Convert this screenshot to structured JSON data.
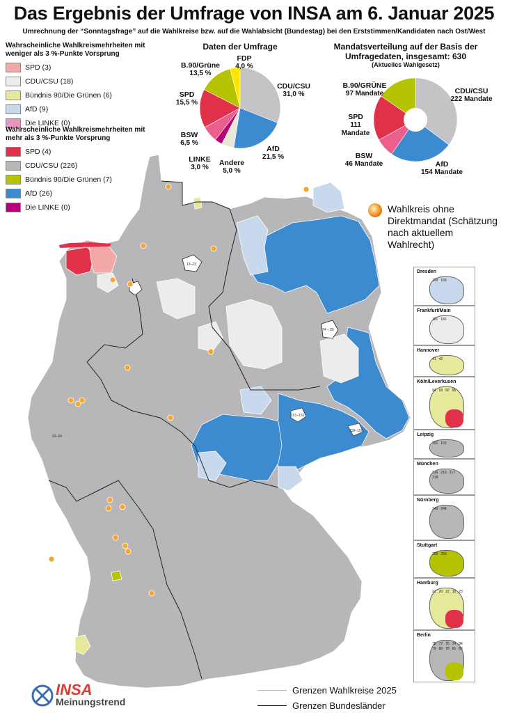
{
  "title": "Das Ergebnis der Umfrage von INSA am 6. Januar 2025",
  "subtitle": "Umrechnung der “Sonntagsfrage” auf die Wahlkreise bzw. auf die Wahlabsicht (Bundestag) bei den Erststimmen/Kandidaten nach Ost/West",
  "colors": {
    "spd_strong": "#e0304a",
    "spd_weak": "#f2a8a6",
    "cdu_strong": "#b7b7b9",
    "cdu_weak": "#ececec",
    "gruene_strong": "#b5c300",
    "gruene_weak": "#e6e89a",
    "afd_strong": "#3c8bd0",
    "afd_weak": "#c8d9ee",
    "linke_strong": "#b5007a",
    "linke_weak": "#e893c0",
    "fdp": "#ffe600",
    "bsw": "#ec5f8c",
    "andere": "#e8e8d8",
    "no_mandate_marker": "#f7a530"
  },
  "legend_weak": {
    "heading": "Wahrscheinliche Wahlkreismehrheiten mit weniger als 3 %-Punkte Vorsprung",
    "items": [
      {
        "label": "SPD (3)",
        "color": "#f2a8a6"
      },
      {
        "label": "CDU/CSU (18)",
        "color": "#ececec"
      },
      {
        "label": "Bündnis 90/Die Grünen (6)",
        "color": "#e6e89a"
      },
      {
        "label": "AfD (9)",
        "color": "#c8d9ee"
      },
      {
        "label": "Die LINKE (0)",
        "color": "#e893c0"
      }
    ]
  },
  "legend_strong": {
    "heading": "Wahrscheinliche Wahlkreismehrheiten mit mehr als 3 %-Punkte Vorsprung",
    "items": [
      {
        "label": "SPD (4)",
        "color": "#e0304a"
      },
      {
        "label": "CDU/CSU (226)",
        "color": "#b7b7b9"
      },
      {
        "label": "Bündnis 90/Die Grünen (7)",
        "color": "#b5c300"
      },
      {
        "label": "AfD (26)",
        "color": "#3c8bd0"
      },
      {
        "label": "Die LINKE (0)",
        "color": "#b5007a"
      }
    ]
  },
  "chart_data": [
    {
      "type": "pie",
      "title": "Daten der Umfrage",
      "slices": [
        {
          "name": "CDU/CSU",
          "value": 31.0,
          "label": "31,0 %",
          "color": "#c4c4c6"
        },
        {
          "name": "AfD",
          "value": 21.5,
          "label": "21,5 %",
          "color": "#3c8bd0"
        },
        {
          "name": "Andere",
          "value": 5.0,
          "label": "5,0 %",
          "color": "#e8e8d8"
        },
        {
          "name": "LINKE",
          "value": 3.0,
          "label": "3,0 %",
          "color": "#b5007a"
        },
        {
          "name": "BSW",
          "value": 6.5,
          "label": "6,5 %",
          "color": "#ec5f8c"
        },
        {
          "name": "SPD",
          "value": 15.5,
          "label": "15,5 %",
          "color": "#e0304a"
        },
        {
          "name": "B.90/Grüne",
          "value": 13.5,
          "label": "13,5 %",
          "color": "#b5c300"
        },
        {
          "name": "FDP",
          "value": 4.0,
          "label": "4,0 %",
          "color": "#ffe600"
        }
      ]
    },
    {
      "type": "pie",
      "title": "Mandatsverteilung auf der Basis der Umfragedaten, insgesamt: 630",
      "subtitle": "(Aktuelles Wahlgesetz)",
      "slices": [
        {
          "name": "CDU/CSU",
          "value": 222,
          "label": "222 Mandate",
          "color": "#c4c4c6"
        },
        {
          "name": "AfD",
          "value": 154,
          "label": "154 Mandate",
          "color": "#3c8bd0"
        },
        {
          "name": "BSW",
          "value": 46,
          "label": "46 Mandate",
          "color": "#ec5f8c"
        },
        {
          "name": "SPD",
          "value": 111,
          "label": "111 Mandate",
          "color": "#e0304a"
        },
        {
          "name": "B.90/GRÜNE",
          "value": 97,
          "label": "97 Mandate",
          "color": "#b5c300"
        }
      ]
    }
  ],
  "marker_legend": "Wahlkreis ohne Direktmandat (Schätzung nach aktuellem Wahlrecht)",
  "insets": [
    {
      "name": "Dresden",
      "labels": [
        "159",
        "158"
      ]
    },
    {
      "name": "Frankfurt/Main",
      "labels": [
        "181",
        "182"
      ]
    },
    {
      "name": "Hannover",
      "labels": [
        "41",
        "42"
      ]
    },
    {
      "name": "Köln/Leverkusen",
      "labels": [
        "94",
        "93",
        "92",
        "95"
      ]
    },
    {
      "name": "Leipzig",
      "labels": [
        "151",
        "152"
      ]
    },
    {
      "name": "München",
      "labels": [
        "216",
        "219",
        "217",
        "218"
      ]
    },
    {
      "name": "Nürnberg",
      "labels": [
        "243",
        "244"
      ]
    },
    {
      "name": "Stuttgart",
      "labels": [
        "259",
        "258"
      ]
    },
    {
      "name": "Hamburg",
      "labels": [
        "21",
        "20",
        "22",
        "19",
        "23"
      ]
    },
    {
      "name": "Berlin",
      "labels": [
        "75",
        "77",
        "76",
        "74",
        "84",
        "79",
        "80",
        "78",
        "81",
        "83"
      ]
    }
  ],
  "map_labels": [
    "13–23",
    "74 – 85",
    "93–94",
    "151–152",
    "158–159"
  ],
  "bottom_legend": {
    "wk": "Grenzen Wahlkreise 2025",
    "bl": "Grenzen Bundesländer"
  },
  "logo": {
    "brand": "INSA",
    "sub": "Meinungstrend"
  }
}
